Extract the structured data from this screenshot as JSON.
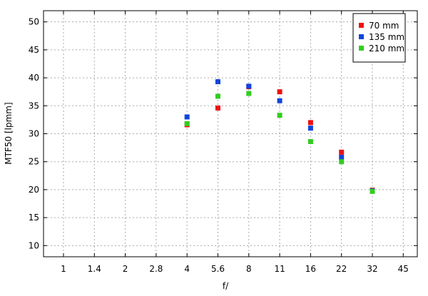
{
  "chart_data": {
    "type": "scatter",
    "xlabel": "f/",
    "ylabel": "MTF50 [lpmm]",
    "x_scale": "log",
    "x_ticks": [
      "1",
      "1.4",
      "2",
      "2.8",
      "4",
      "5.6",
      "8",
      "11",
      "16",
      "22",
      "32",
      "45"
    ],
    "ylim": [
      8,
      52
    ],
    "y_ticks": [
      10,
      15,
      20,
      25,
      30,
      35,
      40,
      45,
      50
    ],
    "grid": true,
    "legend_position": "top-right",
    "series": [
      {
        "name": "70 mm",
        "color": "#ee1111",
        "points": [
          {
            "x": "4",
            "y": 31.6
          },
          {
            "x": "5.6",
            "y": 34.6
          },
          {
            "x": "8",
            "y": 38.4
          },
          {
            "x": "11",
            "y": 37.5
          },
          {
            "x": "16",
            "y": 32.0
          },
          {
            "x": "22",
            "y": 26.7
          },
          {
            "x": "32",
            "y": 19.9
          }
        ]
      },
      {
        "name": "135 mm",
        "color": "#1144dd",
        "points": [
          {
            "x": "4",
            "y": 33.0
          },
          {
            "x": "5.6",
            "y": 39.3
          },
          {
            "x": "8",
            "y": 38.5
          },
          {
            "x": "11",
            "y": 35.9
          },
          {
            "x": "16",
            "y": 31.0
          },
          {
            "x": "22",
            "y": 25.8
          },
          {
            "x": "32",
            "y": 19.8
          }
        ]
      },
      {
        "name": "210 mm",
        "color": "#33cc22",
        "points": [
          {
            "x": "4",
            "y": 31.8
          },
          {
            "x": "5.6",
            "y": 36.7
          },
          {
            "x": "8",
            "y": 37.2
          },
          {
            "x": "11",
            "y": 33.3
          },
          {
            "x": "16",
            "y": 28.6
          },
          {
            "x": "22",
            "y": 25.0
          },
          {
            "x": "32",
            "y": 19.7
          }
        ]
      }
    ]
  }
}
